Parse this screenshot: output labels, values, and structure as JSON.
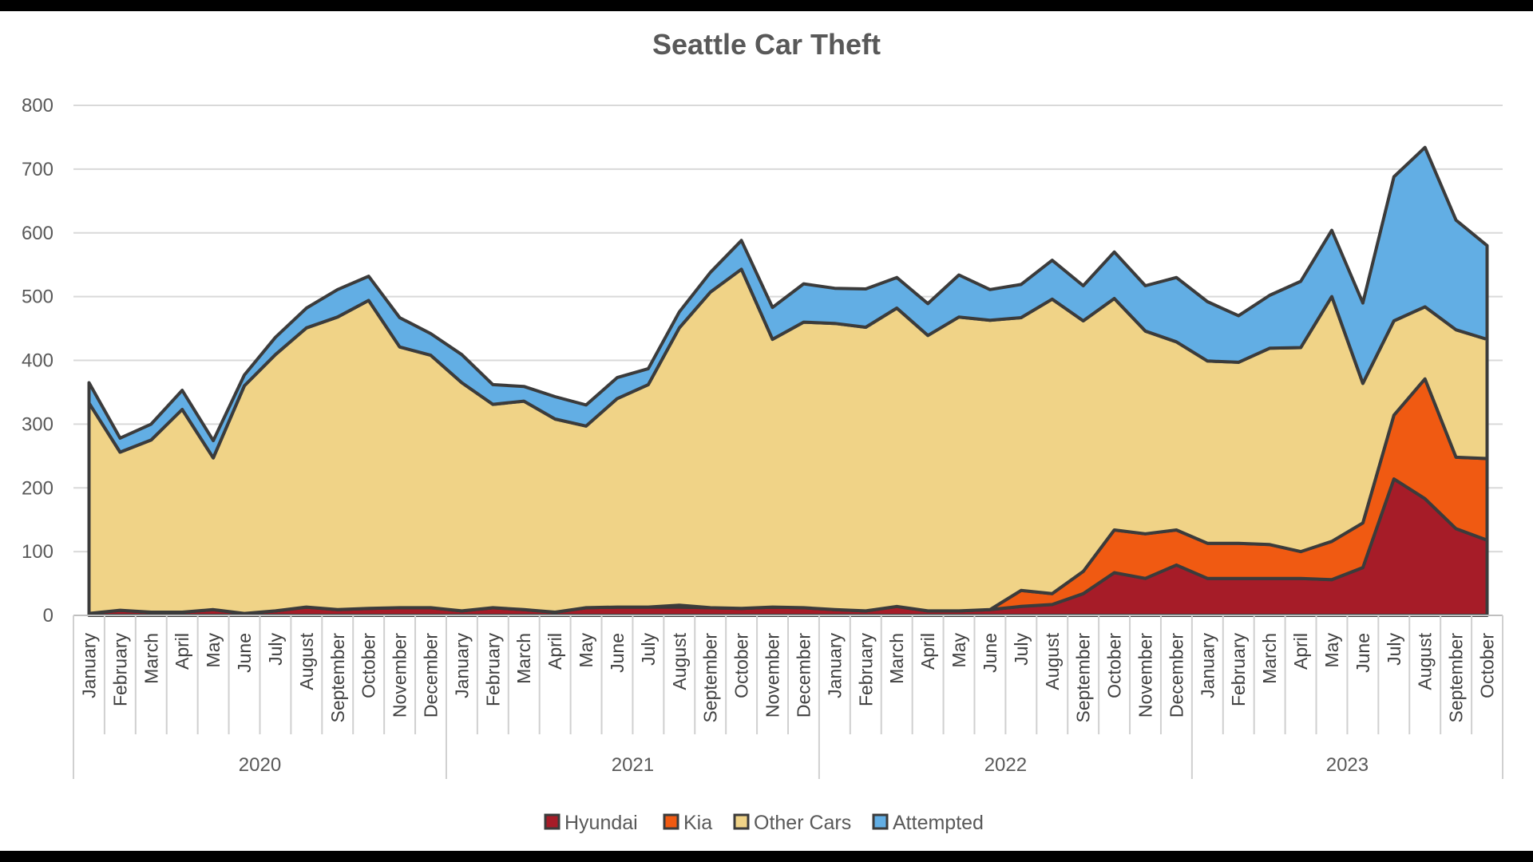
{
  "chart_data": {
    "type": "area",
    "stacked": true,
    "title": "Seattle Car Theft",
    "xlabel": "",
    "ylabel": "",
    "ylim": [
      0,
      800
    ],
    "yticks": [
      0,
      100,
      200,
      300,
      400,
      500,
      600,
      700,
      800
    ],
    "grid": true,
    "legend_position": "bottom",
    "years": [
      {
        "label": "2020",
        "count": 12
      },
      {
        "label": "2021",
        "count": 12
      },
      {
        "label": "2022",
        "count": 12
      },
      {
        "label": "2023",
        "count": 10
      }
    ],
    "categories": [
      "January",
      "February",
      "March",
      "April",
      "May",
      "June",
      "July",
      "August",
      "September",
      "October",
      "November",
      "December",
      "January",
      "February",
      "March",
      "April",
      "May",
      "June",
      "July",
      "August",
      "September",
      "October",
      "November",
      "December",
      "January",
      "February",
      "March",
      "April",
      "May",
      "June",
      "July",
      "August",
      "September",
      "October",
      "November",
      "December",
      "January",
      "February",
      "March",
      "April",
      "May",
      "June",
      "July",
      "August",
      "September",
      "October"
    ],
    "series": [
      {
        "name": "Hyundai",
        "color": "#A61C28",
        "values": [
          3,
          8,
          5,
          5,
          9,
          3,
          7,
          13,
          9,
          11,
          12,
          12,
          7,
          12,
          9,
          5,
          12,
          13,
          13,
          13,
          12,
          11,
          13,
          12,
          9,
          7,
          14,
          7,
          7,
          9,
          14,
          17,
          34,
          67,
          58,
          79,
          58,
          58,
          58,
          58,
          56,
          75,
          214,
          183,
          136,
          118
        ]
      },
      {
        "name": "Kia",
        "color": "#F05A12",
        "values": [
          0,
          0,
          0,
          0,
          0,
          0,
          0,
          0,
          0,
          0,
          0,
          0,
          0,
          0,
          0,
          0,
          0,
          0,
          0,
          3,
          0,
          0,
          0,
          0,
          0,
          0,
          0,
          0,
          0,
          0,
          25,
          17,
          35,
          67,
          70,
          55,
          55,
          55,
          53,
          42,
          60,
          70,
          100,
          188,
          112,
          128
        ]
      },
      {
        "name": "Other Cars",
        "color": "#F0D387",
        "values": [
          330,
          248,
          270,
          318,
          238,
          357,
          402,
          438,
          459,
          483,
          409,
          396,
          358,
          319,
          327,
          303,
          285,
          327,
          349,
          435,
          495,
          532,
          420,
          448,
          449,
          445,
          468,
          432,
          461,
          454,
          428,
          462,
          393,
          363,
          318,
          295,
          286,
          284,
          308,
          320,
          384,
          219,
          148,
          113,
          200,
          187
        ]
      },
      {
        "name": "Attempted",
        "color": "#62AEE4",
        "values": [
          32,
          22,
          25,
          30,
          27,
          17,
          27,
          31,
          43,
          38,
          46,
          34,
          44,
          31,
          23,
          35,
          33,
          33,
          25,
          25,
          31,
          45,
          50,
          60,
          55,
          60,
          48,
          50,
          66,
          48,
          52,
          61,
          55,
          73,
          71,
          101,
          93,
          73,
          83,
          104,
          104,
          126,
          226,
          250,
          172,
          147
        ]
      }
    ]
  }
}
